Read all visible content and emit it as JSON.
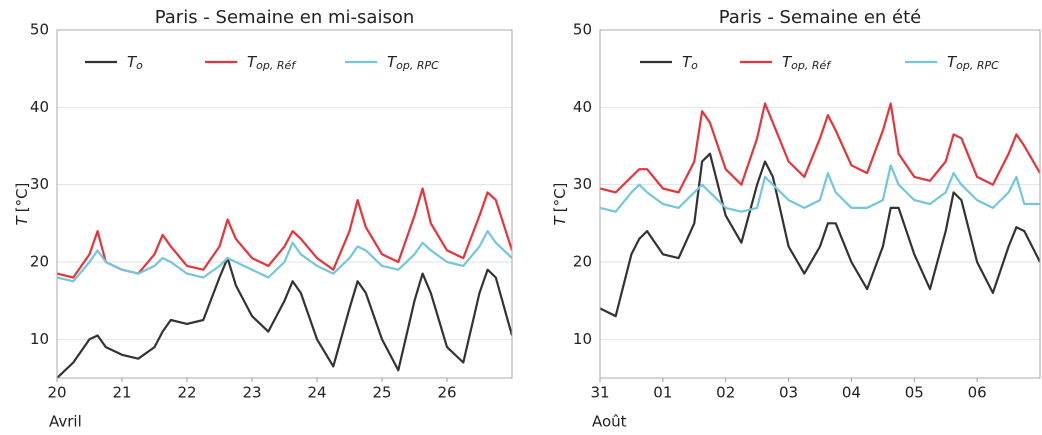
{
  "chart_data": [
    {
      "type": "line",
      "title": "Paris - Semaine en mi-saison",
      "ylabel": {
        "symbol": "T",
        "unit": "[°C]"
      },
      "month_label": "Avril",
      "x": [
        20,
        20.25,
        20.5,
        20.625,
        20.75,
        21,
        21.25,
        21.5,
        21.625,
        21.75,
        22,
        22.25,
        22.5,
        22.625,
        22.75,
        23,
        23.25,
        23.5,
        23.625,
        23.75,
        24,
        24.25,
        24.5,
        24.625,
        24.75,
        25,
        25.25,
        25.5,
        25.625,
        25.75,
        26,
        26.25,
        26.5,
        26.625,
        26.75,
        27
      ],
      "xlim": [
        20,
        27
      ],
      "xticks": [
        20,
        21,
        22,
        23,
        24,
        25,
        26
      ],
      "ylim": [
        5,
        50
      ],
      "yticks": [
        10,
        20,
        30,
        40,
        50
      ],
      "grid": true,
      "series": [
        {
          "name": {
            "symbol": "T",
            "subscript": "o"
          },
          "color": "#333333",
          "values": [
            5,
            7,
            10,
            10.5,
            9,
            8,
            7.5,
            9,
            11,
            12.5,
            12,
            12.5,
            18,
            20.5,
            17,
            13,
            11,
            15,
            17.5,
            16,
            10,
            6.5,
            14,
            17.5,
            16,
            10,
            6,
            15,
            18.5,
            16,
            9,
            7,
            16,
            19,
            18,
            10.5
          ]
        },
        {
          "name": {
            "symbol": "T",
            "subscript": "op, Réf"
          },
          "color": "#e8333a",
          "values": [
            18.5,
            18,
            21,
            24,
            20,
            19,
            18.5,
            21,
            23.5,
            22,
            19.5,
            19,
            22,
            25.5,
            23,
            20.5,
            19.5,
            22,
            24,
            23,
            20.5,
            19,
            24,
            28,
            24.5,
            21,
            20,
            26,
            29.5,
            25,
            21.5,
            20.5,
            26,
            29,
            28,
            21.5
          ]
        },
        {
          "name": {
            "symbol": "T",
            "subscript": "op, RPC"
          },
          "color": "#74c6dc",
          "values": [
            18,
            17.5,
            20,
            21.5,
            20,
            19,
            18.5,
            19.5,
            20.5,
            20,
            18.5,
            18,
            19.5,
            20.5,
            20,
            19,
            18,
            20,
            22.5,
            21,
            19.5,
            18.5,
            20.5,
            22,
            21.5,
            19.5,
            19,
            21,
            22.5,
            21.5,
            20,
            19.5,
            22,
            24,
            22.5,
            20.5
          ]
        }
      ]
    },
    {
      "type": "line",
      "title": "Paris - Semaine en été",
      "ylabel": {
        "symbol": "T",
        "unit": "[°C]"
      },
      "month_label": "Août",
      "x": [
        31,
        31.25,
        31.5,
        31.625,
        31.75,
        32,
        32.25,
        32.5,
        32.625,
        32.75,
        33,
        33.25,
        33.5,
        33.625,
        33.75,
        34,
        34.25,
        34.5,
        34.625,
        34.75,
        35,
        35.25,
        35.5,
        35.625,
        35.75,
        36,
        36.25,
        36.5,
        36.625,
        36.75,
        37,
        37.25,
        37.5,
        37.625,
        37.75,
        38
      ],
      "xlim": [
        31,
        38
      ],
      "xticks": [
        31,
        {
          "value": 32,
          "label": "01"
        },
        {
          "value": 33,
          "label": "02"
        },
        {
          "value": 34,
          "label": "03"
        },
        {
          "value": 35,
          "label": "04"
        },
        {
          "value": 36,
          "label": "05"
        },
        {
          "value": 37,
          "label": "06"
        }
      ],
      "ylim": [
        5,
        50
      ],
      "yticks": [
        10,
        20,
        30,
        40,
        50
      ],
      "grid": true,
      "series": [
        {
          "name": {
            "symbol": "T",
            "subscript": "o"
          },
          "color": "#333333",
          "values": [
            14,
            13,
            21,
            23,
            24,
            21,
            20.5,
            25,
            33,
            34,
            26,
            22.5,
            30,
            33,
            31,
            22,
            18.5,
            22,
            25,
            25,
            20,
            16.5,
            22,
            27,
            27,
            21,
            16.5,
            24,
            29,
            28,
            20,
            16,
            22,
            24.5,
            24,
            20
          ]
        },
        {
          "name": {
            "symbol": "T",
            "subscript": "op, Réf"
          },
          "color": "#e8333a",
          "values": [
            29.5,
            29,
            31,
            32,
            32,
            29.5,
            29,
            33,
            39.5,
            38,
            32,
            30,
            36,
            40.5,
            38,
            33,
            31,
            36,
            39,
            37,
            32.5,
            31.5,
            37,
            40.5,
            34,
            31,
            30.5,
            33,
            36.5,
            36,
            31,
            30,
            34,
            36.5,
            35,
            31.5
          ]
        },
        {
          "name": {
            "symbol": "T",
            "subscript": "op, RPC"
          },
          "color": "#74c6dc",
          "values": [
            27,
            26.5,
            29,
            30,
            29,
            27.5,
            27,
            29,
            30,
            29,
            27,
            26.5,
            27,
            31,
            30,
            28,
            27,
            28,
            31.5,
            29,
            27,
            27,
            28,
            32.5,
            30,
            28,
            27.5,
            29,
            31.5,
            30,
            28,
            27,
            29,
            31,
            27.5,
            27.5
          ]
        }
      ]
    }
  ]
}
